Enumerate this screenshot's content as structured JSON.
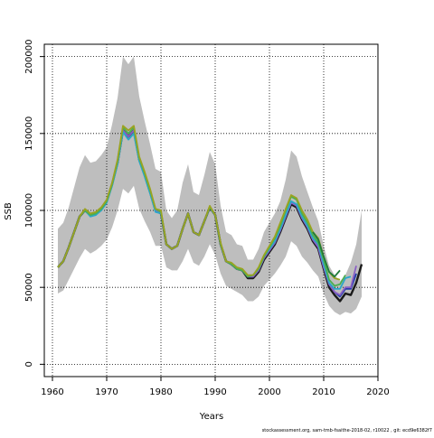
{
  "chart_data": {
    "type": "line",
    "title": "",
    "xlabel": "Years",
    "ylabel": "SSB",
    "xlim": [
      1958.5,
      2020
    ],
    "ylim": [
      -8000,
      208000
    ],
    "x_ticks": [
      1960,
      1970,
      1980,
      1990,
      2000,
      2010,
      2020
    ],
    "y_ticks": [
      0,
      50000,
      100000,
      150000,
      200000
    ],
    "grid": true,
    "legend": "none",
    "footnote": "stockassessment.org, sam-tmb-fsaithe-2018-02, r10022 , git: ecd9e6382f7",
    "confidence_band": {
      "color": "#bebebe",
      "x": [
        1961,
        1962,
        1963,
        1964,
        1965,
        1966,
        1967,
        1968,
        1969,
        1970,
        1971,
        1972,
        1973,
        1974,
        1975,
        1976,
        1977,
        1978,
        1979,
        1980,
        1981,
        1982,
        1983,
        1984,
        1985,
        1986,
        1987,
        1988,
        1989,
        1990,
        1991,
        1992,
        1993,
        1994,
        1995,
        1996,
        1997,
        1998,
        1999,
        2000,
        2001,
        2002,
        2003,
        2004,
        2005,
        2006,
        2007,
        2008,
        2009,
        2010,
        2011,
        2012,
        2013,
        2014,
        2015,
        2016,
        2017
      ],
      "upper": [
        88000,
        92000,
        102000,
        115000,
        128000,
        136000,
        131000,
        132000,
        136000,
        141000,
        156000,
        173000,
        200000,
        195000,
        200000,
        174000,
        158000,
        143000,
        127000,
        125000,
        100000,
        95000,
        100000,
        118000,
        130000,
        112000,
        110000,
        123000,
        138000,
        130000,
        103000,
        86000,
        84000,
        78000,
        77000,
        68000,
        68000,
        75000,
        86000,
        92000,
        98000,
        106000,
        120000,
        139000,
        135000,
        122000,
        112000,
        102000,
        93000,
        77000,
        64000,
        58000,
        54000,
        58000,
        66000,
        78000,
        100000
      ],
      "lower": [
        46000,
        48000,
        55000,
        62000,
        69000,
        75000,
        72000,
        74000,
        77000,
        81000,
        89000,
        100000,
        114000,
        111000,
        116000,
        101000,
        93000,
        86000,
        77000,
        77000,
        63000,
        61000,
        61000,
        67000,
        75000,
        66000,
        64000,
        70000,
        78000,
        71000,
        59000,
        51000,
        49000,
        47000,
        45000,
        41000,
        41000,
        44000,
        51000,
        55000,
        59000,
        64000,
        70000,
        80000,
        77000,
        70000,
        66000,
        61000,
        57000,
        46000,
        38000,
        34000,
        32000,
        34000,
        33000,
        36000,
        44000
      ]
    },
    "series": [
      {
        "color": "#1a1a1a",
        "x": [
          1961,
          1962,
          1963,
          1964,
          1965,
          1966,
          1967,
          1968,
          1969,
          1970,
          1971,
          1972,
          1973,
          1974,
          1975,
          1976,
          1977,
          1978,
          1979,
          1980,
          1981,
          1982,
          1983,
          1984,
          1985,
          1986,
          1987,
          1988,
          1989,
          1990,
          1991,
          1992,
          1993,
          1994,
          1995,
          1996,
          1997,
          1998,
          1999,
          2000,
          2001,
          2002,
          2003,
          2004,
          2005,
          2006,
          2007,
          2008,
          2009,
          2010,
          2011,
          2012,
          2013,
          2014,
          2015,
          2016,
          2017
        ],
        "values": [
          63000,
          67000,
          76000,
          86000,
          96000,
          100000,
          97000,
          98000,
          101000,
          106000,
          117000,
          131000,
          152000,
          148000,
          152000,
          133000,
          123000,
          112000,
          100000,
          98000,
          78000,
          75000,
          77000,
          88000,
          98000,
          86000,
          84000,
          93000,
          102000,
          97000,
          78000,
          67000,
          65000,
          62000,
          61000,
          56000,
          56000,
          60000,
          68000,
          73000,
          78000,
          86000,
          95000,
          104000,
          102000,
          94000,
          88000,
          80000,
          75000,
          62000,
          50000,
          45000,
          41000,
          46000,
          45000,
          53000,
          65000
        ]
      },
      {
        "color": "#1e3aa8",
        "x": [
          1961,
          1962,
          1963,
          1964,
          1965,
          1966,
          1967,
          1968,
          1969,
          1970,
          1971,
          1972,
          1973,
          1974,
          1975,
          1976,
          1977,
          1978,
          1979,
          1980,
          1981,
          1982,
          1983,
          1984,
          1985,
          1986,
          1987,
          1988,
          1989,
          1990,
          1991,
          1992,
          1993,
          1994,
          1995,
          1996,
          1997,
          1998,
          1999,
          2000,
          2001,
          2002,
          2003,
          2004,
          2005,
          2006,
          2007,
          2008,
          2009,
          2010,
          2011,
          2012,
          2013,
          2014,
          2015,
          2016
        ],
        "values": [
          63000,
          67000,
          76000,
          86000,
          96000,
          100000,
          97000,
          98000,
          101000,
          106000,
          117000,
          131000,
          152000,
          148000,
          152000,
          133000,
          123000,
          112000,
          100000,
          98000,
          78000,
          75000,
          77000,
          88000,
          98000,
          86000,
          84000,
          93000,
          102000,
          97000,
          78000,
          67000,
          65000,
          62000,
          61000,
          57000,
          57000,
          61000,
          69000,
          74000,
          79000,
          87000,
          96000,
          105000,
          103000,
          95000,
          89000,
          81000,
          76000,
          63000,
          52000,
          47000,
          44000,
          49000,
          49000,
          59000
        ]
      },
      {
        "color": "#8a5fc4",
        "x": [
          1961,
          1962,
          1963,
          1964,
          1965,
          1966,
          1967,
          1968,
          1969,
          1970,
          1971,
          1972,
          1973,
          1974,
          1975,
          1976,
          1977,
          1978,
          1979,
          1980,
          1981,
          1982,
          1983,
          1984,
          1985,
          1986,
          1987,
          1988,
          1989,
          1990,
          1991,
          1992,
          1993,
          1994,
          1995,
          1996,
          1997,
          1998,
          1999,
          2000,
          2001,
          2002,
          2003,
          2004,
          2005,
          2006,
          2007,
          2008,
          2009,
          2010,
          2011,
          2012,
          2013,
          2014,
          2015,
          2016
        ],
        "values": [
          63000,
          67000,
          76000,
          86000,
          96000,
          100000,
          97000,
          98000,
          101000,
          106000,
          117000,
          131000,
          152000,
          148000,
          152000,
          133000,
          123000,
          112000,
          100000,
          98000,
          78000,
          75000,
          77000,
          88000,
          98000,
          86000,
          84000,
          93000,
          102000,
          97000,
          78000,
          67000,
          65000,
          62000,
          61000,
          57000,
          57000,
          61000,
          69000,
          74000,
          79000,
          87000,
          96000,
          105000,
          103000,
          95000,
          89000,
          81000,
          76000,
          63000,
          52000,
          47000,
          45000,
          50000,
          50000,
          64000
        ]
      },
      {
        "color": "#2aa7c9",
        "x": [
          1961,
          1962,
          1963,
          1964,
          1965,
          1966,
          1967,
          1968,
          1969,
          1970,
          1971,
          1972,
          1973,
          1974,
          1975,
          1976,
          1977,
          1978,
          1979,
          1980,
          1981,
          1982,
          1983,
          1984,
          1985,
          1986,
          1987,
          1988,
          1989,
          1990,
          1991,
          1992,
          1993,
          1994,
          1995,
          1996,
          1997,
          1998,
          1999,
          2000,
          2001,
          2002,
          2003,
          2004,
          2005,
          2006,
          2007,
          2008,
          2009,
          2010,
          2011,
          2012,
          2013,
          2014,
          2015
        ],
        "values": [
          63000,
          67000,
          76000,
          86000,
          96000,
          100000,
          96000,
          97000,
          100000,
          105000,
          116000,
          130000,
          151000,
          146000,
          150000,
          132000,
          122000,
          111000,
          99000,
          98000,
          78000,
          75000,
          77000,
          88000,
          98000,
          86000,
          84000,
          93000,
          102000,
          97000,
          78000,
          67000,
          65000,
          62000,
          61000,
          57000,
          58000,
          62000,
          70000,
          75000,
          80000,
          88000,
          97000,
          106000,
          104000,
          96000,
          90000,
          82000,
          78000,
          65000,
          53000,
          49000,
          49000,
          56000,
          57000
        ]
      },
      {
        "color": "#4caf50",
        "x": [
          1961,
          1962,
          1963,
          1964,
          1965,
          1966,
          1967,
          1968,
          1969,
          1970,
          1971,
          1972,
          1973,
          1974,
          1975,
          1976,
          1977,
          1978,
          1979,
          1980,
          1981,
          1982,
          1983,
          1984,
          1985,
          1986,
          1987,
          1988,
          1989,
          1990,
          1991,
          1992,
          1993,
          1994,
          1995,
          1996,
          1997,
          1998,
          1999,
          2000,
          2001,
          2002,
          2003,
          2004,
          2005,
          2006,
          2007,
          2008,
          2009,
          2010,
          2011,
          2012,
          2013,
          2014
        ],
        "values": [
          63000,
          67000,
          76000,
          86000,
          96000,
          100000,
          97000,
          98000,
          101000,
          106000,
          117000,
          132000,
          154000,
          150000,
          154000,
          134000,
          124000,
          113000,
          101000,
          99000,
          78000,
          75000,
          77000,
          88000,
          98000,
          86000,
          84000,
          93000,
          102000,
          97000,
          78000,
          67000,
          65000,
          62000,
          61000,
          57000,
          58000,
          62000,
          70000,
          76000,
          82000,
          90000,
          100000,
          109000,
          107000,
          98000,
          92000,
          84000,
          79000,
          68000,
          55000,
          51000,
          52000,
          58000
        ]
      },
      {
        "color": "#9aa321",
        "x": [
          1961,
          1962,
          1963,
          1964,
          1965,
          1966,
          1967,
          1968,
          1969,
          1970,
          1971,
          1972,
          1973,
          1974,
          1975,
          1976,
          1977,
          1978,
          1979,
          1980,
          1981,
          1982,
          1983,
          1984,
          1985,
          1986,
          1987,
          1988,
          1989,
          1990,
          1991,
          1992,
          1993,
          1994,
          1995,
          1996,
          1997,
          1998,
          1999,
          2000,
          2001,
          2002,
          2003,
          2004,
          2005,
          2006,
          2007,
          2008,
          2009,
          2010,
          2011,
          2012,
          2013
        ],
        "values": [
          63000,
          67000,
          76000,
          86000,
          96000,
          101000,
          98000,
          99000,
          102000,
          107000,
          118000,
          133000,
          155000,
          152000,
          155000,
          135000,
          125000,
          114000,
          101000,
          100000,
          78000,
          75000,
          77000,
          88000,
          98000,
          86000,
          84000,
          93000,
          103000,
          97000,
          79000,
          67000,
          66000,
          63000,
          62000,
          58000,
          58000,
          63000,
          71000,
          77000,
          83000,
          92000,
          101000,
          110000,
          108000,
          100000,
          94000,
          86000,
          82000,
          70000,
          60000,
          56000,
          55000
        ]
      },
      {
        "color": "#1e7a3a",
        "x": [
          2008,
          2009,
          2010,
          2011,
          2012,
          2013
        ],
        "values": [
          86000,
          81000,
          70000,
          60000,
          57000,
          61000
        ]
      }
    ]
  }
}
